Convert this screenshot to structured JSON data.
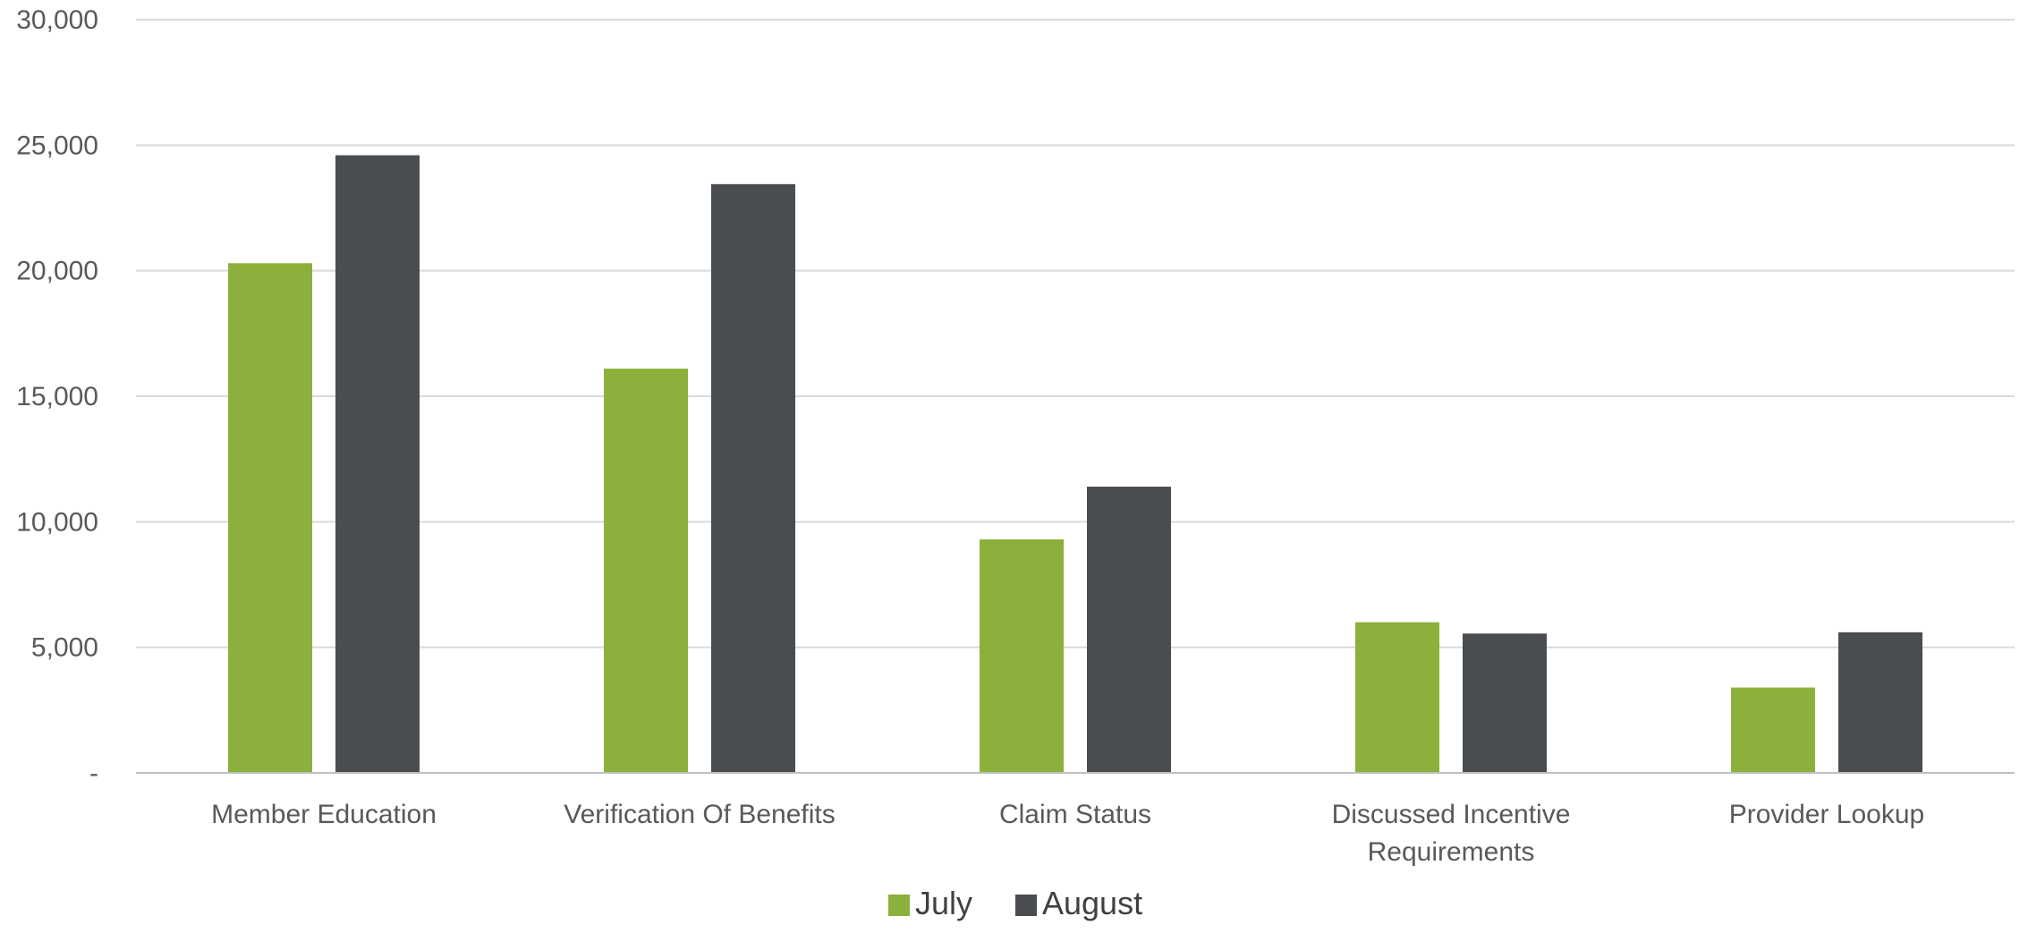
{
  "chart_data": {
    "type": "bar",
    "categories": [
      [
        "Member Education"
      ],
      [
        "Verification Of Benefits"
      ],
      [
        "Claim Status"
      ],
      [
        "Discussed Incentive",
        "Requirements"
      ],
      [
        "Provider Lookup"
      ]
    ],
    "series": [
      {
        "name": "July",
        "color": "#8BB03C",
        "values": [
          20300,
          16100,
          9300,
          6000,
          3400
        ]
      },
      {
        "name": "August",
        "color": "#4A4D50",
        "values": [
          24600,
          23450,
          11400,
          5550,
          5600
        ]
      }
    ],
    "ylim": [
      0,
      30000
    ],
    "yticks": [
      0,
      5000,
      10000,
      15000,
      20000,
      25000,
      30000
    ],
    "ytick_labels": [
      "-",
      "5,000",
      "10,000",
      "15,000",
      "20,000",
      "25,000",
      "30,000"
    ],
    "title": "",
    "xlabel": "",
    "ylabel": "",
    "grid": true,
    "legend_position": "bottom-center",
    "gridline_color": "#D9D9D9"
  }
}
